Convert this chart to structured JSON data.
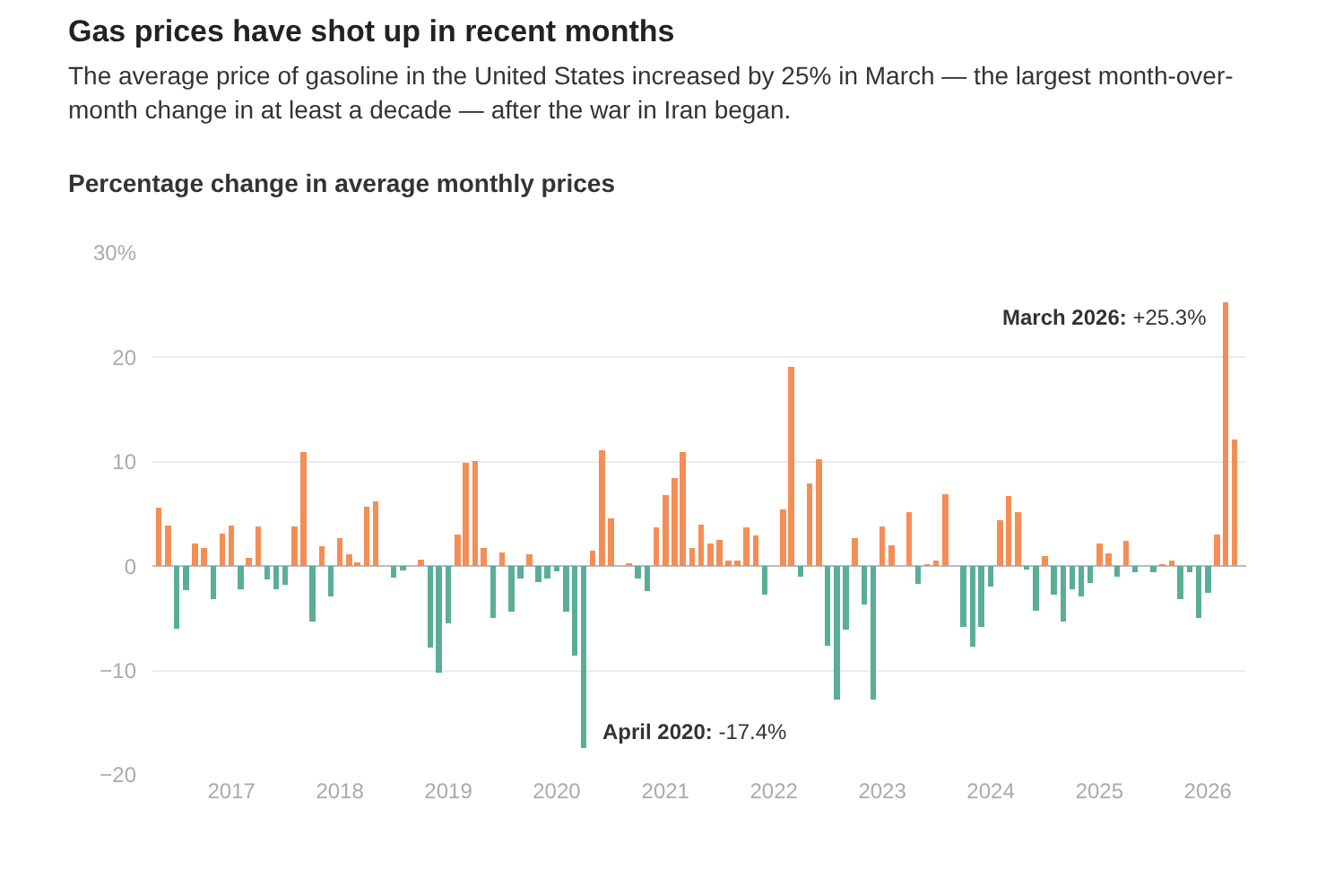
{
  "chart_data": {
    "type": "bar",
    "title": "Gas prices have shot up in recent months",
    "subtitle": "The average price of gasoline in the United States increased by 25% in March — the largest month-over-month change in at least a decade — after the war in Iran began.",
    "ylabel": "Percentage change in average monthly prices",
    "x": [
      "2016-05",
      "2016-06",
      "2016-07",
      "2016-08",
      "2016-09",
      "2016-10",
      "2016-11",
      "2016-12",
      "2017-01",
      "2017-02",
      "2017-03",
      "2017-04",
      "2017-05",
      "2017-06",
      "2017-07",
      "2017-08",
      "2017-09",
      "2017-10",
      "2017-11",
      "2017-12",
      "2018-01",
      "2018-02",
      "2018-03",
      "2018-04",
      "2018-05",
      "2018-06",
      "2018-07",
      "2018-08",
      "2018-09",
      "2018-10",
      "2018-11",
      "2018-12",
      "2019-01",
      "2019-02",
      "2019-03",
      "2019-04",
      "2019-05",
      "2019-06",
      "2019-07",
      "2019-08",
      "2019-09",
      "2019-10",
      "2019-11",
      "2019-12",
      "2020-01",
      "2020-02",
      "2020-03",
      "2020-04",
      "2020-05",
      "2020-06",
      "2020-07",
      "2020-08",
      "2020-09",
      "2020-10",
      "2020-11",
      "2020-12",
      "2021-01",
      "2021-02",
      "2021-03",
      "2021-04",
      "2021-05",
      "2021-06",
      "2021-07",
      "2021-08",
      "2021-09",
      "2021-10",
      "2021-11",
      "2021-12",
      "2022-01",
      "2022-02",
      "2022-03",
      "2022-04",
      "2022-05",
      "2022-06",
      "2022-07",
      "2022-08",
      "2022-09",
      "2022-10",
      "2022-11",
      "2022-12",
      "2023-01",
      "2023-02",
      "2023-03",
      "2023-04",
      "2023-05",
      "2023-06",
      "2023-07",
      "2023-08",
      "2023-09",
      "2023-10",
      "2023-11",
      "2023-12",
      "2024-01",
      "2024-02",
      "2024-03",
      "2024-04",
      "2024-05",
      "2024-06",
      "2024-07",
      "2024-08",
      "2024-09",
      "2024-10",
      "2024-11",
      "2024-12",
      "2025-01",
      "2025-02",
      "2025-03",
      "2025-04",
      "2025-05",
      "2025-06",
      "2025-07",
      "2025-08",
      "2025-09",
      "2025-10",
      "2025-11",
      "2025-12",
      "2026-01",
      "2026-02",
      "2026-03",
      "2026-04"
    ],
    "values": [
      5.6,
      3.9,
      -6.0,
      -2.3,
      2.2,
      1.7,
      -3.2,
      3.1,
      3.9,
      -2.2,
      0.8,
      3.8,
      -1.3,
      -2.2,
      -1.8,
      3.8,
      10.9,
      -5.3,
      1.9,
      -2.9,
      2.7,
      1.1,
      0.4,
      5.7,
      6.2,
      0,
      -1.1,
      -0.4,
      0,
      0.6,
      -7.8,
      -10.2,
      -5.5,
      3.0,
      9.9,
      10.1,
      1.7,
      -5.0,
      1.3,
      -4.4,
      -1.2,
      1.1,
      -1.5,
      -1.2,
      -0.5,
      -4.4,
      -8.6,
      -17.4,
      1.5,
      11.1,
      4.6,
      0,
      0.3,
      -1.2,
      -2.4,
      3.7,
      6.8,
      8.4,
      10.9,
      1.7,
      4.0,
      2.2,
      2.5,
      0.5,
      0.5,
      3.7,
      2.9,
      -2.7,
      0,
      5.4,
      19.1,
      -1.0,
      7.9,
      10.2,
      -7.6,
      -12.8,
      -6.1,
      2.7,
      -3.7,
      -12.8,
      3.8,
      2.0,
      0,
      5.2,
      -1.7,
      0.2,
      0.5,
      6.9,
      0,
      -5.8,
      -7.7,
      -5.8,
      -2.0,
      4.4,
      6.7,
      5.2,
      -0.3,
      -4.3,
      1.0,
      -2.7,
      -5.3,
      -2.2,
      -2.9,
      -1.6,
      2.2,
      1.2,
      -1.0,
      2.4,
      -0.6,
      0,
      -0.6,
      0.2,
      0.5,
      -3.2,
      -0.6,
      -5.0,
      -2.6,
      3.0,
      25.3,
      12.1
    ],
    "colors": [
      "#f58d56",
      "#f58d56",
      "#5aae98",
      "#5aae98",
      "#f58d56",
      "#f58d56",
      "#5aae98",
      "#f58d56",
      "#f58d56",
      "#5aae98",
      "#f58d56",
      "#f58d56",
      "#5aae98",
      "#5aae98",
      "#5aae98",
      "#f58d56",
      "#f58d56",
      "#5aae98",
      "#f58d56",
      "#5aae98",
      "#f58d56",
      "#f58d56",
      "#f58d56",
      "#f58d56",
      "#f58d56",
      "#f58d56",
      "#5aae98",
      "#5aae98",
      "#f58d56",
      "#f58d56",
      "#5aae98",
      "#5aae98",
      "#5aae98",
      "#f58d56",
      "#f58d56",
      "#f58d56",
      "#f58d56",
      "#5aae98",
      "#f58d56",
      "#5aae98",
      "#5aae98",
      "#f58d56",
      "#5aae98",
      "#5aae98",
      "#5aae98",
      "#5aae98",
      "#5aae98",
      "#5aae98",
      "#f58d56",
      "#f58d56",
      "#f58d56",
      "#f58d56",
      "#f58d56",
      "#5aae98",
      "#5aae98",
      "#f58d56",
      "#f58d56",
      "#f58d56",
      "#f58d56",
      "#f58d56",
      "#f58d56",
      "#f58d56",
      "#f58d56",
      "#f58d56",
      "#f58d56",
      "#f58d56",
      "#f58d56",
      "#5aae98",
      "#f58d56",
      "#f58d56",
      "#f58d56",
      "#5aae98",
      "#f58d56",
      "#f58d56",
      "#5aae98",
      "#5aae98",
      "#5aae98",
      "#f58d56",
      "#5aae98",
      "#5aae98",
      "#f58d56",
      "#f58d56",
      "#f58d56",
      "#f58d56",
      "#5aae98",
      "#f58d56",
      "#f58d56",
      "#f58d56",
      "#f58d56",
      "#5aae98",
      "#5aae98",
      "#5aae98",
      "#5aae98",
      "#f58d56",
      "#f58d56",
      "#f58d56",
      "#5aae98",
      "#5aae98",
      "#f58d56",
      "#5aae98",
      "#5aae98",
      "#5aae98",
      "#5aae98",
      "#5aae98",
      "#f58d56",
      "#f58d56",
      "#5aae98",
      "#f58d56",
      "#5aae98",
      "#f58d56",
      "#5aae98",
      "#f58d56",
      "#f58d56",
      "#5aae98",
      "#5aae98",
      "#5aae98",
      "#5aae98",
      "#f58d56",
      "#f58d56",
      "#f58d56"
    ],
    "xlim": [
      "2016-04-10",
      "2026-05-10"
    ],
    "xticks": [
      {
        "value": "2017-01",
        "label": "2017"
      },
      {
        "value": "2018-01",
        "label": "2018"
      },
      {
        "value": "2019-01",
        "label": "2019"
      },
      {
        "value": "2020-01",
        "label": "2020"
      },
      {
        "value": "2021-01",
        "label": "2021"
      },
      {
        "value": "2022-01",
        "label": "2022"
      },
      {
        "value": "2023-01",
        "label": "2023"
      },
      {
        "value": "2024-01",
        "label": "2024"
      },
      {
        "value": "2025-01",
        "label": "2025"
      },
      {
        "value": "2026-01",
        "label": "2026"
      }
    ],
    "ylim": [
      -20,
      30
    ],
    "yticks": [
      {
        "value": -20,
        "label": "−20"
      },
      {
        "value": -10,
        "label": "−10"
      },
      0,
      10,
      20,
      {
        "value": 30,
        "label": "30%"
      }
    ],
    "grid": "y",
    "annotations": [
      {
        "text": "March 2026: +25.3%",
        "x": "2026-03",
        "y": 25.3
      },
      {
        "text": "April 2020: -17.4%",
        "x": "2020-04",
        "y": -17.4
      }
    ]
  }
}
